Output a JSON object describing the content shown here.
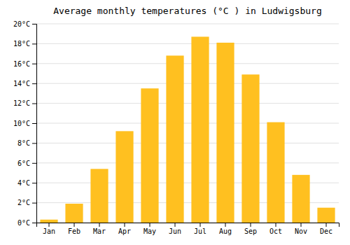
{
  "chart_data": {
    "type": "bar",
    "title": "Average monthly temperatures (°C ) in Ludwigsburg",
    "categories": [
      "Jan",
      "Feb",
      "Mar",
      "Apr",
      "May",
      "Jun",
      "Jul",
      "Aug",
      "Sep",
      "Oct",
      "Nov",
      "Dec"
    ],
    "values": [
      0.3,
      1.9,
      5.4,
      9.2,
      13.5,
      16.8,
      18.7,
      18.1,
      14.9,
      10.1,
      4.8,
      1.5
    ],
    "color": "#FFC020",
    "ylim": [
      0,
      20
    ],
    "yticks": [
      {
        "value": 0,
        "label": "0°C"
      },
      {
        "value": 2,
        "label": "2°C"
      },
      {
        "value": 4,
        "label": "4°C"
      },
      {
        "value": 6,
        "label": "6°C"
      },
      {
        "value": 8,
        "label": "8°C"
      },
      {
        "value": 10,
        "label": "10°C"
      },
      {
        "value": 12,
        "label": "12°C"
      },
      {
        "value": 14,
        "label": "14°C"
      },
      {
        "value": 16,
        "label": "16°C"
      },
      {
        "value": 18,
        "label": "18°C"
      },
      {
        "value": 20,
        "label": "20°C"
      }
    ],
    "grid": true
  }
}
